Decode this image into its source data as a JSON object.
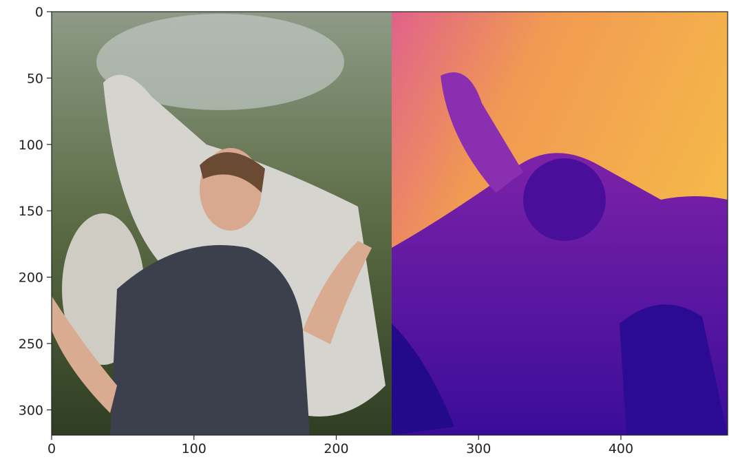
{
  "chart_data": {
    "type": "image",
    "xlim": [
      0,
      475
    ],
    "ylim": [
      319,
      0
    ],
    "xticks": [
      0,
      100,
      200,
      300,
      400
    ],
    "yticks": [
      0,
      50,
      100,
      150,
      200,
      250,
      300
    ]
  }
}
